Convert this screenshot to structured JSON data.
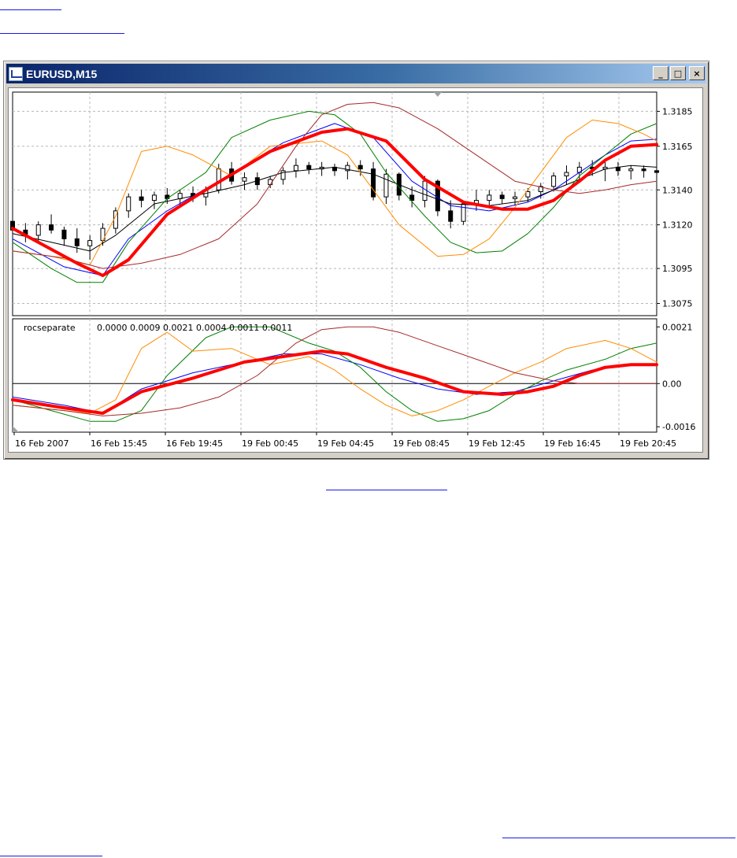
{
  "window": {
    "title": "EURUSD,M15",
    "icon": "chart-window-icon",
    "controls": {
      "minimize": "_",
      "maximize": "□",
      "close": "×"
    }
  },
  "chart_data": [
    {
      "type": "line",
      "panel": "price",
      "title": "",
      "yticks": [
        "1.3185",
        "1.3165",
        "1.3140",
        "1.3120",
        "1.3095",
        "1.3075"
      ],
      "ylim": [
        1.3068,
        1.3196
      ],
      "grid": true,
      "x_tick_labels": [
        "16 Feb 2007",
        "16 Feb 15:45",
        "16 Feb 19:45",
        "19 Feb 00:45",
        "19 Feb 04:45",
        "19 Feb 08:45",
        "19 Feb 12:45",
        "19 Feb 16:45",
        "19 Feb 20:45"
      ],
      "x_index_range": [
        0,
        100
      ],
      "candles": [
        [
          0,
          1.3122,
          1.3127,
          1.3113,
          1.3117
        ],
        [
          2,
          1.3117,
          1.3121,
          1.311,
          1.3114
        ],
        [
          4,
          1.3114,
          1.3122,
          1.3111,
          1.312
        ],
        [
          6,
          1.312,
          1.3126,
          1.3115,
          1.3117
        ],
        [
          8,
          1.3117,
          1.3119,
          1.3108,
          1.3112
        ],
        [
          10,
          1.3112,
          1.3118,
          1.3104,
          1.3108
        ],
        [
          12,
          1.3108,
          1.3114,
          1.31,
          1.3111
        ],
        [
          14,
          1.3111,
          1.3121,
          1.3108,
          1.3118
        ],
        [
          16,
          1.3118,
          1.313,
          1.3115,
          1.3128
        ],
        [
          18,
          1.3128,
          1.3138,
          1.3124,
          1.3136
        ],
        [
          20,
          1.3136,
          1.314,
          1.313,
          1.3134
        ],
        [
          22,
          1.3134,
          1.3139,
          1.3129,
          1.3137
        ],
        [
          24,
          1.3137,
          1.3141,
          1.3132,
          1.3135
        ],
        [
          26,
          1.3135,
          1.314,
          1.3131,
          1.3138
        ],
        [
          28,
          1.3138,
          1.3142,
          1.3133,
          1.3136
        ],
        [
          30,
          1.3136,
          1.3142,
          1.3131,
          1.314
        ],
        [
          32,
          1.314,
          1.3155,
          1.3138,
          1.3152
        ],
        [
          34,
          1.3152,
          1.3156,
          1.3143,
          1.3145
        ],
        [
          36,
          1.3145,
          1.315,
          1.314,
          1.3147
        ],
        [
          38,
          1.3147,
          1.315,
          1.314,
          1.3143
        ],
        [
          40,
          1.3143,
          1.3148,
          1.3141,
          1.3146
        ],
        [
          42,
          1.3146,
          1.3153,
          1.3143,
          1.3151
        ],
        [
          44,
          1.3151,
          1.3158,
          1.3147,
          1.3154
        ],
        [
          46,
          1.3154,
          1.3156,
          1.3149,
          1.3152
        ],
        [
          48,
          1.3152,
          1.3156,
          1.3148,
          1.3153
        ],
        [
          50,
          1.3153,
          1.3155,
          1.3148,
          1.3151
        ],
        [
          52,
          1.3151,
          1.3156,
          1.3146,
          1.3154
        ],
        [
          54,
          1.3154,
          1.3157,
          1.3148,
          1.3152
        ],
        [
          56,
          1.3152,
          1.3156,
          1.3134,
          1.3136
        ],
        [
          58,
          1.3136,
          1.3152,
          1.3132,
          1.3149
        ],
        [
          60,
          1.3149,
          1.315,
          1.3134,
          1.3137
        ],
        [
          62,
          1.3137,
          1.3142,
          1.313,
          1.3134
        ],
        [
          64,
          1.3134,
          1.3148,
          1.313,
          1.3145
        ],
        [
          66,
          1.3145,
          1.3146,
          1.3125,
          1.3128
        ],
        [
          68,
          1.3128,
          1.3134,
          1.3118,
          1.3122
        ],
        [
          70,
          1.3122,
          1.3134,
          1.312,
          1.3132
        ],
        [
          72,
          1.3132,
          1.314,
          1.3128,
          1.3134
        ],
        [
          74,
          1.3134,
          1.314,
          1.313,
          1.3137
        ],
        [
          76,
          1.3137,
          1.3139,
          1.3132,
          1.3135
        ],
        [
          78,
          1.3135,
          1.3139,
          1.3131,
          1.3136
        ],
        [
          80,
          1.3136,
          1.3141,
          1.3133,
          1.3139
        ],
        [
          82,
          1.3139,
          1.3144,
          1.3135,
          1.3142
        ],
        [
          84,
          1.3142,
          1.315,
          1.3139,
          1.3148
        ],
        [
          86,
          1.3148,
          1.3154,
          1.3143,
          1.315
        ],
        [
          88,
          1.315,
          1.3156,
          1.3146,
          1.3153
        ],
        [
          90,
          1.3153,
          1.3157,
          1.3148,
          1.3152
        ],
        [
          92,
          1.3152,
          1.3156,
          1.3145,
          1.3153
        ],
        [
          94,
          1.3153,
          1.3156,
          1.3148,
          1.3151
        ],
        [
          96,
          1.3151,
          1.3154,
          1.3146,
          1.3152
        ],
        [
          98,
          1.3152,
          1.3154,
          1.3147,
          1.3151
        ],
        [
          100,
          1.3151,
          1.3153,
          1.3148,
          1.315
        ]
      ],
      "series": [
        {
          "color": "#ff0000",
          "width": 4,
          "x": [
            0,
            10,
            14,
            18,
            24,
            30,
            40,
            48,
            52,
            58,
            64,
            70,
            76,
            80,
            84,
            88,
            92,
            96,
            100
          ],
          "values": [
            1.3118,
            1.3098,
            1.3091,
            1.31,
            1.3126,
            1.314,
            1.3162,
            1.3173,
            1.3175,
            1.3168,
            1.3146,
            1.3133,
            1.3129,
            1.3129,
            1.3134,
            1.3145,
            1.3157,
            1.3165,
            1.3166
          ]
        },
        {
          "color": "#0000ff",
          "width": 1,
          "x": [
            0,
            8,
            14,
            18,
            24,
            32,
            42,
            50,
            56,
            62,
            68,
            74,
            80,
            84,
            88,
            92,
            96,
            100
          ],
          "values": [
            1.3112,
            1.3096,
            1.3091,
            1.3112,
            1.3128,
            1.3145,
            1.3167,
            1.3178,
            1.317,
            1.3145,
            1.3131,
            1.3128,
            1.3133,
            1.314,
            1.315,
            1.316,
            1.3168,
            1.3169
          ]
        },
        {
          "color": "#000000",
          "width": 1,
          "x": [
            0,
            6,
            12,
            16,
            22,
            30,
            36,
            42,
            50,
            56,
            62,
            68,
            74,
            80,
            86,
            92,
            96,
            100
          ],
          "values": [
            1.3115,
            1.311,
            1.3105,
            1.3114,
            1.3132,
            1.3138,
            1.3143,
            1.315,
            1.3153,
            1.3149,
            1.314,
            1.3132,
            1.3131,
            1.3134,
            1.3143,
            1.3152,
            1.3154,
            1.3153
          ]
        },
        {
          "color": "#008000",
          "width": 1,
          "x": [
            0,
            6,
            10,
            14,
            18,
            24,
            30,
            34,
            40,
            46,
            50,
            54,
            58,
            64,
            68,
            72,
            76,
            80,
            84,
            88,
            92,
            96,
            100
          ],
          "values": [
            1.311,
            1.3095,
            1.3087,
            1.3087,
            1.311,
            1.3135,
            1.315,
            1.317,
            1.318,
            1.3185,
            1.3183,
            1.3172,
            1.315,
            1.3125,
            1.311,
            1.3104,
            1.3105,
            1.3115,
            1.313,
            1.3148,
            1.316,
            1.3172,
            1.3178
          ]
        },
        {
          "color": "#ff8c00",
          "width": 1,
          "x": [
            0,
            6,
            12,
            16,
            20,
            24,
            28,
            34,
            40,
            48,
            52,
            56,
            60,
            66,
            70,
            74,
            78,
            82,
            86,
            90,
            94,
            98,
            100
          ],
          "values": [
            1.3105,
            1.3102,
            1.3097,
            1.3125,
            1.3162,
            1.3165,
            1.316,
            1.3148,
            1.3165,
            1.3168,
            1.316,
            1.314,
            1.312,
            1.3102,
            1.3103,
            1.3112,
            1.313,
            1.315,
            1.317,
            1.318,
            1.3178,
            1.3172,
            1.3168
          ]
        },
        {
          "color": "#a52a2a",
          "width": 1,
          "x": [
            0,
            8,
            14,
            20,
            26,
            32,
            38,
            44,
            48,
            52,
            56,
            60,
            66,
            72,
            78,
            84,
            88,
            92,
            96,
            100
          ],
          "values": [
            1.3105,
            1.3101,
            1.3095,
            1.3098,
            1.3103,
            1.3112,
            1.3132,
            1.3165,
            1.3183,
            1.3189,
            1.319,
            1.3187,
            1.3175,
            1.316,
            1.3145,
            1.314,
            1.3138,
            1.314,
            1.3143,
            1.3145
          ]
        }
      ]
    },
    {
      "type": "line",
      "panel": "indicator",
      "label": "rocseparate",
      "values_text": "0.0000 0.0009 0.0021 0.0004 0.0011 0.0011",
      "yticks": [
        "0.0021",
        "0.00",
        "-0.0016"
      ],
      "ylim": [
        -0.0018,
        0.0024
      ],
      "zero_line": true,
      "series": [
        {
          "color": "#ff0000",
          "width": 4,
          "x": [
            0,
            8,
            14,
            20,
            28,
            36,
            42,
            48,
            52,
            58,
            64,
            70,
            76,
            80,
            84,
            88,
            92,
            96,
            100
          ],
          "values": [
            -0.0006,
            -0.0009,
            -0.0011,
            -0.0003,
            0.0002,
            0.0008,
            0.001,
            0.0012,
            0.0011,
            0.0006,
            0.0002,
            -0.0003,
            -0.0004,
            -0.0003,
            -0.0001,
            0.0003,
            0.0006,
            0.0007,
            0.0007
          ]
        },
        {
          "color": "#0000ff",
          "width": 1,
          "x": [
            0,
            8,
            14,
            20,
            28,
            36,
            42,
            48,
            54,
            60,
            66,
            72,
            78,
            84,
            90,
            96,
            100
          ],
          "values": [
            -0.0005,
            -0.0008,
            -0.0011,
            -0.0002,
            0.0004,
            0.0008,
            0.0011,
            0.0011,
            0.0007,
            0.0002,
            -0.0002,
            -0.0004,
            -0.0003,
            0.0001,
            0.0005,
            0.0007,
            0.0007
          ]
        },
        {
          "color": "#008000",
          "width": 1,
          "x": [
            0,
            6,
            12,
            16,
            20,
            24,
            30,
            34,
            40,
            46,
            50,
            54,
            58,
            62,
            66,
            70,
            74,
            78,
            82,
            86,
            92,
            96,
            100
          ],
          "values": [
            -0.0006,
            -0.001,
            -0.0014,
            -0.0014,
            -0.001,
            0.0003,
            0.0017,
            0.0021,
            0.0021,
            0.0015,
            0.0012,
            0.0006,
            -0.0003,
            -0.001,
            -0.0014,
            -0.0013,
            -0.001,
            -0.0004,
            0.0001,
            0.0005,
            0.0009,
            0.0013,
            0.0015
          ]
        },
        {
          "color": "#ff8c00",
          "width": 1,
          "x": [
            0,
            8,
            12,
            16,
            20,
            24,
            28,
            34,
            40,
            46,
            50,
            54,
            58,
            62,
            66,
            70,
            74,
            78,
            82,
            86,
            92,
            96,
            100
          ],
          "values": [
            -0.0008,
            -0.001,
            -0.0011,
            -0.0006,
            0.0013,
            0.0019,
            0.0012,
            0.0013,
            0.0007,
            0.001,
            0.0005,
            -0.0002,
            -0.0008,
            -0.0012,
            -0.001,
            -0.0006,
            -0.0001,
            0.0004,
            0.0008,
            0.0013,
            0.0016,
            0.0013,
            0.0008
          ]
        },
        {
          "color": "#a52a2a",
          "width": 1,
          "x": [
            0,
            8,
            14,
            20,
            26,
            32,
            38,
            44,
            48,
            52,
            56,
            60,
            66,
            72,
            78,
            84,
            88,
            92,
            96,
            100
          ],
          "values": [
            -0.0008,
            -0.001,
            -0.0012,
            -0.0011,
            -0.0009,
            -0.0005,
            0.0003,
            0.0015,
            0.002,
            0.0021,
            0.0021,
            0.0019,
            0.0014,
            0.0009,
            0.0004,
            0.0001,
            0.0,
            0.0,
            0.0,
            0.0
          ]
        }
      ]
    }
  ]
}
